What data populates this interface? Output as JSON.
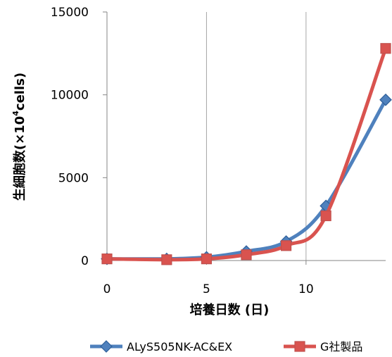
{
  "chart_data": {
    "type": "line",
    "xlabel": "培養日数 (日)",
    "ylabel_main": "生細胞数(×10",
    "ylabel_sup": "4",
    "ylabel_end": "cells)",
    "xlim": [
      0,
      14
    ],
    "ylim": [
      0,
      15000
    ],
    "x_ticks": [
      "0",
      "5",
      "10"
    ],
    "x_tick_values": [
      0,
      5,
      10
    ],
    "y_ticks": [
      "0",
      "5000",
      "10000",
      "15000"
    ],
    "y_tick_values": [
      0,
      5000,
      10000,
      15000
    ],
    "grid": "vertical",
    "legend_position": "bottom",
    "series": [
      {
        "name": "ALyS505NK-AC&EX",
        "color": "#4F81BD",
        "edge": "#2E5F9A",
        "marker": "diamond",
        "x": [
          0,
          3,
          5,
          7,
          9,
          11,
          14
        ],
        "y": [
          100,
          100,
          200,
          550,
          1150,
          3300,
          9700
        ]
      },
      {
        "name": "G社製品",
        "color": "#D9534F",
        "edge": "#C0504D",
        "marker": "square",
        "x": [
          0,
          3,
          5,
          7,
          9,
          11,
          14
        ],
        "y": [
          100,
          50,
          100,
          350,
          900,
          2700,
          12800
        ]
      }
    ]
  }
}
